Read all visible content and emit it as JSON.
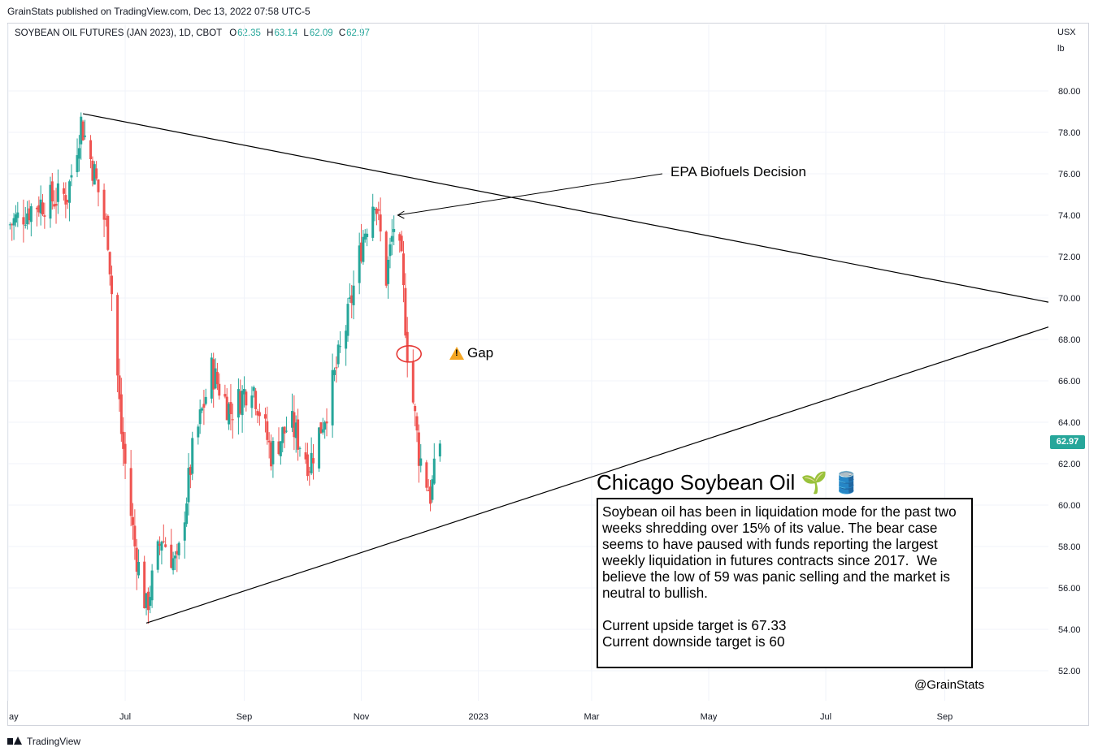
{
  "publisher_line": "GrainStats published on TradingView.com, Dec 13, 2022 07:58 UTC-5",
  "legend": {
    "symbol": "SOYBEAN OIL FUTURES (JAN 2023), 1D, CBOT",
    "o_label": "O",
    "o_value": "62.35",
    "h_label": "H",
    "h_value": "63.14",
    "l_label": "L",
    "l_value": "62.09",
    "c_label": "C",
    "c_value": "62.97"
  },
  "axis_right": {
    "currency": "USX",
    "unit": "lb"
  },
  "last_price_tag": "62.97",
  "annotations": {
    "epa": "EPA Biofuels Decision",
    "gap": "Gap",
    "box_title": "Chicago Soybean Oil 🌱 🛢️",
    "box_text_1": "Soybean oil has been in liquidation mode for the past two weeks shredding over 15% of its value. The bear case seems to have paused with funds reporting the largest weekly liquidation in futures contracts since 2017.  We believe the low of 59 was panic selling and the market is neutral to bullish.",
    "box_text_2": "Current upside target is 67.33\nCurrent downside target is 60",
    "handle": "@GrainStats"
  },
  "footer": {
    "brand": "TradingView"
  },
  "colors": {
    "up": "#26a69a",
    "down": "#ef5350",
    "grid": "#f0f3fa",
    "line": "#000000",
    "circle": "#e53935"
  },
  "chart_data": {
    "type": "candlestick",
    "title": "SOYBEAN OIL FUTURES (JAN 2023), 1D, CBOT",
    "ylabel": "USX/lb",
    "ylim": [
      51.0,
      82.0
    ],
    "yticks": [
      "80.00",
      "78.00",
      "76.00",
      "74.00",
      "72.00",
      "70.00",
      "68.00",
      "66.00",
      "64.00",
      "62.00",
      "60.00",
      "58.00",
      "56.00",
      "54.00",
      "52.00"
    ],
    "xticks": [
      "ay",
      "Jul",
      "Sep",
      "Nov",
      "2023",
      "Mar",
      "May",
      "Jul",
      "Sep"
    ],
    "x_range": [
      "2022-05-01",
      "2023-10-25"
    ],
    "closes_approx": [
      {
        "date": "2022-05-01",
        "close": 73.5
      },
      {
        "date": "2022-05-15",
        "close": 74.5
      },
      {
        "date": "2022-06-01",
        "close": 75.0
      },
      {
        "date": "2022-06-08",
        "close": 78.5
      },
      {
        "date": "2022-06-15",
        "close": 76.0
      },
      {
        "date": "2022-06-22",
        "close": 73.0
      },
      {
        "date": "2022-06-29",
        "close": 63.5
      },
      {
        "date": "2022-07-06",
        "close": 58.0
      },
      {
        "date": "2022-07-12",
        "close": 55.0
      },
      {
        "date": "2022-07-20",
        "close": 58.5
      },
      {
        "date": "2022-07-28",
        "close": 57.0
      },
      {
        "date": "2022-08-05",
        "close": 62.5
      },
      {
        "date": "2022-08-15",
        "close": 66.5
      },
      {
        "date": "2022-08-25",
        "close": 64.5
      },
      {
        "date": "2022-09-05",
        "close": 66.0
      },
      {
        "date": "2022-09-15",
        "close": 62.5
      },
      {
        "date": "2022-09-25",
        "close": 64.0
      },
      {
        "date": "2022-10-05",
        "close": 62.0
      },
      {
        "date": "2022-10-15",
        "close": 65.0
      },
      {
        "date": "2022-10-25",
        "close": 69.0
      },
      {
        "date": "2022-11-02",
        "close": 73.0
      },
      {
        "date": "2022-11-08",
        "close": 75.0
      },
      {
        "date": "2022-11-14",
        "close": 71.0
      },
      {
        "date": "2022-11-18",
        "close": 73.5
      },
      {
        "date": "2022-11-22",
        "close": 71.5
      },
      {
        "date": "2022-11-25",
        "close": 67.5
      },
      {
        "date": "2022-12-01",
        "close": 62.5
      },
      {
        "date": "2022-12-07",
        "close": 60.5
      },
      {
        "date": "2022-12-12",
        "close": 62.97
      }
    ],
    "last": {
      "open": 62.35,
      "high": 63.14,
      "low": 62.09,
      "close": 62.97
    },
    "trendlines": [
      {
        "from": {
          "date": "2022-06-09",
          "price": 78.9
        },
        "to": {
          "date": "2023-10-25",
          "price": 69.8
        }
      },
      {
        "from": {
          "date": "2022-07-12",
          "price": 54.3
        },
        "to": {
          "date": "2023-10-25",
          "price": 68.6
        }
      }
    ],
    "gap_marker": {
      "date": "2022-11-25",
      "price": 67.3
    }
  }
}
